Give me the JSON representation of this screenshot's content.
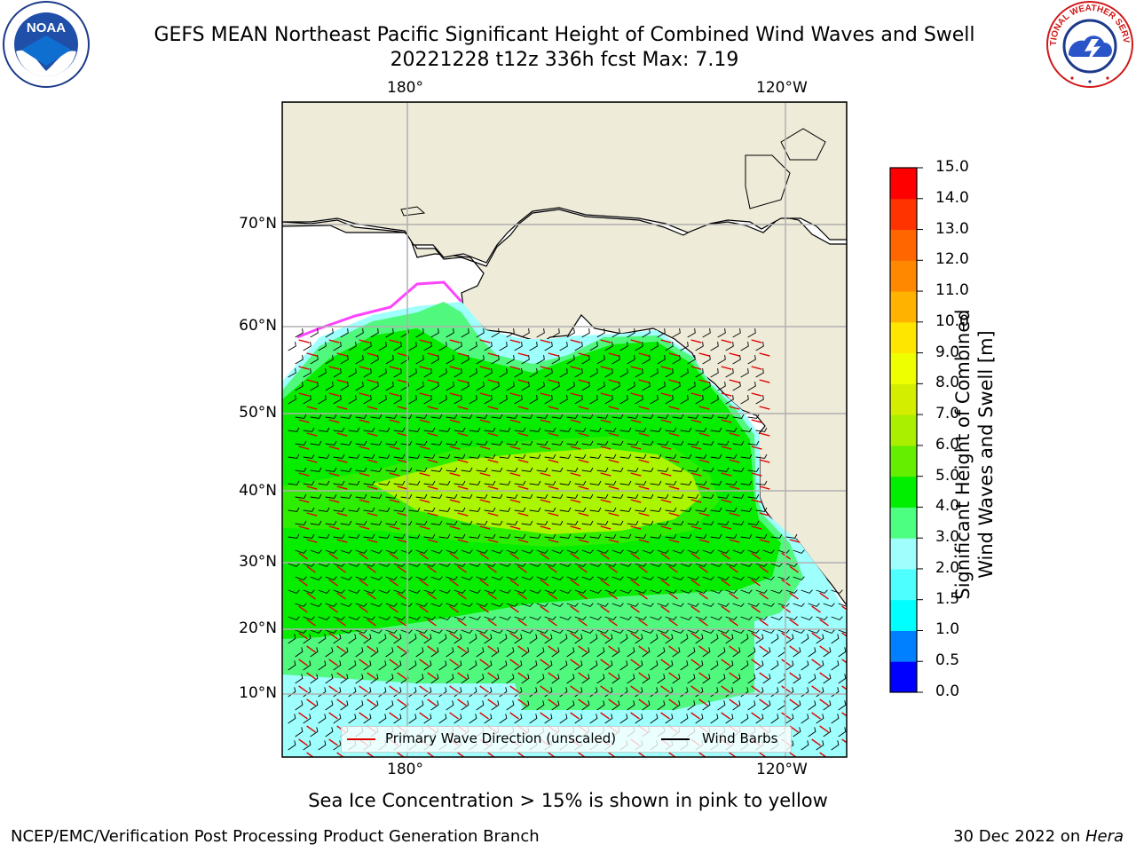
{
  "header": {
    "title_line1": "GEFS MEAN Northeast Pacific Significant Height of Combined Wind Waves and Swell",
    "title_line2": "20221228 t12z 336h fcst   Max: 7.19"
  },
  "logos": {
    "left": "NOAA",
    "right_text": "NATIONAL WEATHER SERVICE"
  },
  "map": {
    "lon_labels": [
      "180°",
      "120°W"
    ],
    "lat_labels": [
      "70°N",
      "60°N",
      "50°N",
      "40°N",
      "30°N",
      "20°N",
      "10°N"
    ],
    "colors": {
      "land": "#efebd9",
      "ocean_low": "#9efffd",
      "ocean_mid": "#51f87e",
      "ocean_high": "#06ed00",
      "peak": "#c7f700",
      "grid": "#b0b0b0"
    }
  },
  "legend": {
    "wave_label": "Primary Wave Direction (unscaled)",
    "barb_label": "Wind Barbs"
  },
  "colorbar": {
    "title_line1": "Significant Height of Combined",
    "title_line2": "Wind Waves and Swell [m]",
    "ticks": [
      "0.0",
      "0.5",
      "1.0",
      "1.5",
      "2.0",
      "3.0",
      "4.0",
      "5.0",
      "6.0",
      "7.0",
      "8.0",
      "9.0",
      "10.0",
      "11.0",
      "12.0",
      "13.0",
      "14.0",
      "15.0"
    ],
    "colors": [
      "#0000ff",
      "#0080ff",
      "#00ffff",
      "#4dffff",
      "#a0fffc",
      "#4dff80",
      "#00ee00",
      "#66ee00",
      "#aaee00",
      "#d4ee00",
      "#eeff00",
      "#ffe600",
      "#ffb300",
      "#ff8800",
      "#ff6600",
      "#ff3300",
      "#ff0000"
    ]
  },
  "footer": {
    "note": "Sea Ice Concentration > 15% is shown in pink to yellow",
    "credit_left": "NCEP/EMC/Verification Post Processing Product Generation Branch",
    "credit_date": "30 Dec 2022 on ",
    "credit_machine": "Hera"
  }
}
